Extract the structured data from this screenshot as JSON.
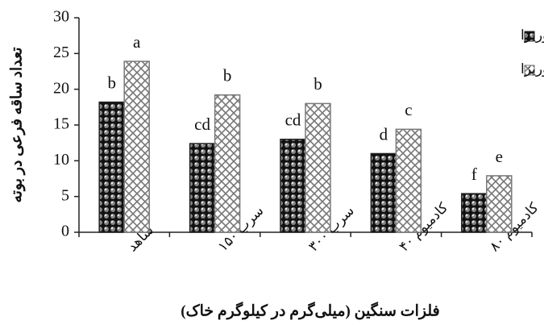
{
  "chart_data": {
    "type": "bar",
    "categories": [
      "شاهد",
      "سرب ۱۵۰",
      "سرب ۳۰۰",
      "کادمیوم ۴۰",
      "کادمیوم ۸۰"
    ],
    "series": [
      {
        "name": "غیرمیکوریزا",
        "color": "#222222",
        "pattern": "dots",
        "values": [
          18.2,
          12.4,
          13.0,
          11.0,
          5.4
        ],
        "letters": [
          "b",
          "cd",
          "cd",
          "d",
          "f"
        ]
      },
      {
        "name": "میکوریزا",
        "color": "#7a7a7a",
        "pattern": "crosshatch",
        "values": [
          23.9,
          19.2,
          18.0,
          14.4,
          7.9
        ],
        "letters": [
          "a",
          "b",
          "b",
          "c",
          "e"
        ]
      }
    ],
    "ylim": [
      0,
      30
    ],
    "yticks": [
      0,
      5,
      10,
      15,
      20,
      25,
      30
    ],
    "y_label": "تعداد ساقه فرعی در بوته",
    "x_label": "فلزات سنگین (میلی‌گرم در کیلوگرم خاک)",
    "grid": false
  }
}
